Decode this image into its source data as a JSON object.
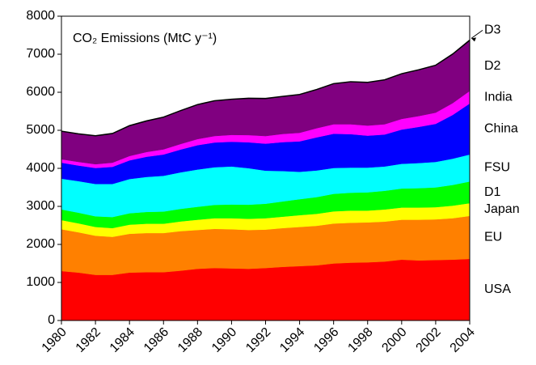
{
  "chart_data": {
    "type": "stacked-area",
    "title": "CO₂ Emissions (MtC y⁻¹)",
    "x": [
      1980,
      1981,
      1982,
      1983,
      1984,
      1985,
      1986,
      1987,
      1988,
      1989,
      1990,
      1991,
      1992,
      1993,
      1994,
      1995,
      1996,
      1997,
      1998,
      1999,
      2000,
      2001,
      2002,
      2003,
      2004
    ],
    "xlim": [
      1980,
      2004
    ],
    "xticks": [
      1980,
      1982,
      1984,
      1986,
      1988,
      1990,
      1992,
      1994,
      1996,
      1998,
      2000,
      2002,
      2004
    ],
    "ylim": [
      0,
      8000
    ],
    "yticks": [
      0,
      1000,
      2000,
      3000,
      4000,
      5000,
      6000,
      7000,
      8000
    ],
    "series": [
      {
        "name": "USA",
        "color": "#ff0000",
        "values": [
          1300,
          1260,
          1200,
          1200,
          1260,
          1270,
          1270,
          1310,
          1360,
          1380,
          1370,
          1360,
          1380,
          1410,
          1430,
          1450,
          1500,
          1520,
          1530,
          1550,
          1600,
          1580,
          1590,
          1600,
          1620
        ]
      },
      {
        "name": "EU",
        "color": "#ff8000",
        "values": [
          1100,
          1060,
          1030,
          1000,
          1020,
          1030,
          1030,
          1040,
          1020,
          1030,
          1030,
          1020,
          1010,
          1020,
          1030,
          1040,
          1050,
          1050,
          1050,
          1050,
          1050,
          1070,
          1070,
          1090,
          1130
        ]
      },
      {
        "name": "Japan",
        "color": "#ffff00",
        "values": [
          240,
          235,
          230,
          230,
          240,
          245,
          245,
          255,
          270,
          280,
          290,
          295,
          300,
          300,
          310,
          315,
          320,
          320,
          310,
          320,
          320,
          320,
          320,
          330,
          335
        ]
      },
      {
        "name": "D1",
        "color": "#00ff00",
        "values": [
          280,
          280,
          280,
          290,
          300,
          310,
          320,
          330,
          340,
          350,
          360,
          370,
          380,
          400,
          420,
          440,
          460,
          470,
          480,
          490,
          500,
          510,
          520,
          545,
          570
        ]
      },
      {
        "name": "FSU",
        "color": "#00ffff",
        "values": [
          810,
          830,
          850,
          870,
          900,
          920,
          940,
          960,
          980,
          990,
          1000,
          960,
          870,
          800,
          720,
          700,
          680,
          660,
          650,
          640,
          650,
          660,
          670,
          690,
          710
        ]
      },
      {
        "name": "China",
        "color": "#0000ff",
        "values": [
          420,
          410,
          420,
          450,
          490,
          530,
          560,
          600,
          640,
          650,
          650,
          680,
          710,
          760,
          800,
          870,
          900,
          880,
          840,
          840,
          900,
          950,
          1000,
          1150,
          1340
        ]
      },
      {
        "name": "India",
        "color": "#ff00ff",
        "values": [
          90,
          95,
          100,
          110,
          115,
          125,
          135,
          145,
          160,
          170,
          180,
          190,
          200,
          215,
          225,
          240,
          250,
          260,
          265,
          270,
          280,
          285,
          295,
          310,
          330
        ]
      },
      {
        "name": "D2",
        "color": "#800080",
        "values": [
          720,
          720,
          730,
          750,
          780,
          800,
          830,
          860,
          890,
          910,
          920,
          950,
          970,
          970,
          990,
          1000,
          1050,
          1100,
          1120,
          1150,
          1170,
          1200,
          1230,
          1270,
          1310
        ]
      },
      {
        "name": "D3",
        "color": "#000000",
        "values": [
          20,
          20,
          20,
          20,
          20,
          20,
          20,
          20,
          20,
          20,
          20,
          20,
          20,
          20,
          20,
          20,
          20,
          20,
          20,
          20,
          20,
          20,
          20,
          25,
          30
        ]
      }
    ]
  }
}
